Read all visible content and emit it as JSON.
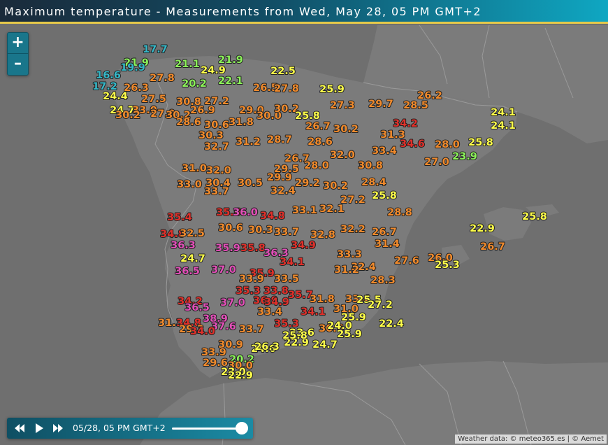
{
  "header": {
    "title": "Maximum temperature - Measurements from Wed, May 28, 05 PM GMT+2"
  },
  "zoom": {
    "in_label": "+",
    "out_label": "–"
  },
  "player": {
    "time_label": "05/28, 05 PM GMT+2",
    "progress": 1.0
  },
  "attribution": "Weather data: © meteo365.es | © Aemet",
  "legend_colors": {
    "cool": "#35b8c8",
    "mild": "#8cf25a",
    "warm": "#ffff4a",
    "hot": "#f08a2c",
    "very_hot": "#e0302a",
    "extreme": "#e24fb8"
  },
  "map_colors": {
    "sea": "#6f6f6f",
    "land": "#7b7b7b",
    "border": "#9a9a9a"
  },
  "stations": [
    {
      "v": "17.7",
      "c": "cool"
    },
    {
      "v": "21.9",
      "c": "mild"
    },
    {
      "v": "19.9",
      "c": "cool"
    },
    {
      "v": "21.1",
      "c": "mild"
    },
    {
      "v": "21.9",
      "c": "mild"
    },
    {
      "v": "24.9",
      "c": "warm"
    },
    {
      "v": "22.5",
      "c": "warm"
    },
    {
      "v": "16.6",
      "c": "cool"
    },
    {
      "v": "27.8",
      "c": "hot"
    },
    {
      "v": "20.2",
      "c": "mild"
    },
    {
      "v": "22.1",
      "c": "mild"
    },
    {
      "v": "17.2",
      "c": "cool"
    },
    {
      "v": "24.4",
      "c": "warm"
    },
    {
      "v": "26.3",
      "c": "hot"
    },
    {
      "v": "26.5",
      "c": "hot"
    },
    {
      "v": "27.8",
      "c": "hot"
    },
    {
      "v": "25.9",
      "c": "warm"
    },
    {
      "v": "26.2",
      "c": "hot"
    },
    {
      "v": "27.5",
      "c": "hot"
    },
    {
      "v": "30.8",
      "c": "hot"
    },
    {
      "v": "27.2",
      "c": "hot"
    },
    {
      "v": "24.7",
      "c": "warm"
    },
    {
      "v": "33.0",
      "c": "hot"
    },
    {
      "v": "27.0",
      "c": "hot"
    },
    {
      "v": "26.9",
      "c": "hot"
    },
    {
      "v": "29.0",
      "c": "hot"
    },
    {
      "v": "30.0",
      "c": "hot"
    },
    {
      "v": "30.2",
      "c": "hot"
    },
    {
      "v": "25.8",
      "c": "warm"
    },
    {
      "v": "27.3",
      "c": "hot"
    },
    {
      "v": "29.7",
      "c": "hot"
    },
    {
      "v": "28.5",
      "c": "hot"
    },
    {
      "v": "24.1",
      "c": "warm"
    },
    {
      "v": "30.2",
      "c": "hot"
    },
    {
      "v": "30.2",
      "c": "hot"
    },
    {
      "v": "28.6",
      "c": "hot"
    },
    {
      "v": "30.6",
      "c": "hot"
    },
    {
      "v": "31.8",
      "c": "hot"
    },
    {
      "v": "26.7",
      "c": "hot"
    },
    {
      "v": "30.2",
      "c": "hot"
    },
    {
      "v": "34.2",
      "c": "very_hot"
    },
    {
      "v": "24.1",
      "c": "warm"
    },
    {
      "v": "30.3",
      "c": "hot"
    },
    {
      "v": "31.2",
      "c": "hot"
    },
    {
      "v": "28.7",
      "c": "hot"
    },
    {
      "v": "28.6",
      "c": "hot"
    },
    {
      "v": "31.3",
      "c": "hot"
    },
    {
      "v": "25.8",
      "c": "warm"
    },
    {
      "v": "32.7",
      "c": "hot"
    },
    {
      "v": "26.7",
      "c": "hot"
    },
    {
      "v": "32.0",
      "c": "hot"
    },
    {
      "v": "33.4",
      "c": "hot"
    },
    {
      "v": "34.6",
      "c": "very_hot"
    },
    {
      "v": "28.0",
      "c": "hot"
    },
    {
      "v": "23.9",
      "c": "mild"
    },
    {
      "v": "31.0",
      "c": "hot"
    },
    {
      "v": "32.0",
      "c": "hot"
    },
    {
      "v": "29.5",
      "c": "hot"
    },
    {
      "v": "28.0",
      "c": "hot"
    },
    {
      "v": "30.8",
      "c": "hot"
    },
    {
      "v": "27.0",
      "c": "hot"
    },
    {
      "v": "33.0",
      "c": "hot"
    },
    {
      "v": "30.4",
      "c": "hot"
    },
    {
      "v": "30.5",
      "c": "hot"
    },
    {
      "v": "29.9",
      "c": "hot"
    },
    {
      "v": "29.2",
      "c": "hot"
    },
    {
      "v": "30.2",
      "c": "hot"
    },
    {
      "v": "28.4",
      "c": "hot"
    },
    {
      "v": "25.8",
      "c": "warm"
    },
    {
      "v": "33.7",
      "c": "hot"
    },
    {
      "v": "32.4",
      "c": "hot"
    },
    {
      "v": "27.2",
      "c": "hot"
    },
    {
      "v": "35.4",
      "c": "very_hot"
    },
    {
      "v": "35.6",
      "c": "very_hot"
    },
    {
      "v": "36.0",
      "c": "extreme"
    },
    {
      "v": "34.8",
      "c": "very_hot"
    },
    {
      "v": "33.1",
      "c": "hot"
    },
    {
      "v": "32.1",
      "c": "hot"
    },
    {
      "v": "28.8",
      "c": "hot"
    },
    {
      "v": "34.8",
      "c": "very_hot"
    },
    {
      "v": "32.5",
      "c": "hot"
    },
    {
      "v": "30.6",
      "c": "hot"
    },
    {
      "v": "30.3",
      "c": "hot"
    },
    {
      "v": "33.7",
      "c": "hot"
    },
    {
      "v": "32.8",
      "c": "hot"
    },
    {
      "v": "32.2",
      "c": "hot"
    },
    {
      "v": "26.7",
      "c": "hot"
    },
    {
      "v": "22.9",
      "c": "warm"
    },
    {
      "v": "25.8",
      "c": "warm"
    },
    {
      "v": "36.3",
      "c": "extreme"
    },
    {
      "v": "35.9",
      "c": "extreme"
    },
    {
      "v": "35.8",
      "c": "very_hot"
    },
    {
      "v": "36.3",
      "c": "extreme"
    },
    {
      "v": "34.9",
      "c": "very_hot"
    },
    {
      "v": "33.3",
      "c": "hot"
    },
    {
      "v": "31.4",
      "c": "hot"
    },
    {
      "v": "26.7",
      "c": "hot"
    },
    {
      "v": "24.7",
      "c": "warm"
    },
    {
      "v": "37.0",
      "c": "extreme"
    },
    {
      "v": "35.9",
      "c": "very_hot"
    },
    {
      "v": "34.1",
      "c": "very_hot"
    },
    {
      "v": "32.4",
      "c": "hot"
    },
    {
      "v": "27.6",
      "c": "hot"
    },
    {
      "v": "26.0",
      "c": "hot"
    },
    {
      "v": "25.3",
      "c": "warm"
    },
    {
      "v": "36.5",
      "c": "extreme"
    },
    {
      "v": "33.9",
      "c": "hot"
    },
    {
      "v": "33.5",
      "c": "hot"
    },
    {
      "v": "31.2",
      "c": "hot"
    },
    {
      "v": "28.3",
      "c": "hot"
    },
    {
      "v": "34.2",
      "c": "very_hot"
    },
    {
      "v": "35.3",
      "c": "very_hot"
    },
    {
      "v": "33.8",
      "c": "very_hot"
    },
    {
      "v": "35.7",
      "c": "very_hot"
    },
    {
      "v": "31.8",
      "c": "hot"
    },
    {
      "v": "33.4",
      "c": "hot"
    },
    {
      "v": "36.5",
      "c": "extreme"
    },
    {
      "v": "37.0",
      "c": "extreme"
    },
    {
      "v": "36.9",
      "c": "very_hot"
    },
    {
      "v": "34.9",
      "c": "very_hot"
    },
    {
      "v": "25.5",
      "c": "warm"
    },
    {
      "v": "38.9",
      "c": "extreme"
    },
    {
      "v": "33.4",
      "c": "hot"
    },
    {
      "v": "34.1",
      "c": "very_hot"
    },
    {
      "v": "31.0",
      "c": "hot"
    },
    {
      "v": "27.2",
      "c": "warm"
    },
    {
      "v": "31.3",
      "c": "hot"
    },
    {
      "v": "34.8",
      "c": "very_hot"
    },
    {
      "v": "37.6",
      "c": "extreme"
    },
    {
      "v": "33.7",
      "c": "hot"
    },
    {
      "v": "35.3",
      "c": "very_hot"
    },
    {
      "v": "30.6",
      "c": "hot"
    },
    {
      "v": "25.9",
      "c": "warm"
    },
    {
      "v": "29.3",
      "c": "hot"
    },
    {
      "v": "34.0",
      "c": "very_hot"
    },
    {
      "v": "23.6",
      "c": "warm"
    },
    {
      "v": "24.0",
      "c": "warm"
    },
    {
      "v": "25.9",
      "c": "warm"
    },
    {
      "v": "30.9",
      "c": "hot"
    },
    {
      "v": "22.9",
      "c": "warm"
    },
    {
      "v": "24.7",
      "c": "warm"
    },
    {
      "v": "33.9",
      "c": "hot"
    },
    {
      "v": "24.6",
      "c": "warm"
    },
    {
      "v": "20.2",
      "c": "mild"
    },
    {
      "v": "29.6",
      "c": "hot"
    },
    {
      "v": "30.0",
      "c": "hot"
    },
    {
      "v": "23.0",
      "c": "warm"
    },
    {
      "v": "22.9",
      "c": "warm"
    },
    {
      "v": "25.8",
      "c": "warm"
    },
    {
      "v": "22.4",
      "c": "warm"
    },
    {
      "v": "26.3",
      "c": "warm"
    }
  ]
}
